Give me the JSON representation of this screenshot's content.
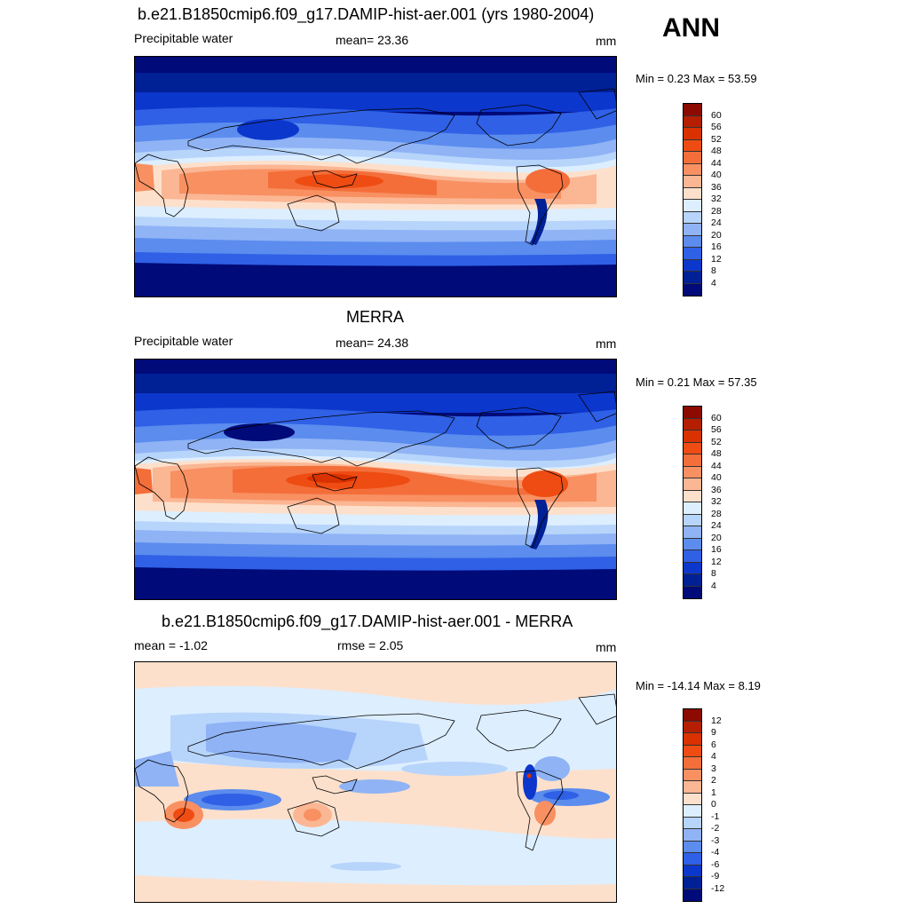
{
  "season": "ANN",
  "panels": [
    {
      "title": "b.e21.B1850cmip6.f09_g17.DAMIP-hist-aer.001 (yrs 1980-2004)",
      "left": "Precipitable water",
      "center": "mean=  23.36",
      "units": "mm",
      "minmax": "Min =   0.23 Max =  53.59",
      "type": "abs"
    },
    {
      "title": "MERRA",
      "left": "Precipitable water",
      "center": "mean=  24.38",
      "units": "mm",
      "minmax": "Min =   0.21 Max =  57.35",
      "type": "abs"
    },
    {
      "title": "b.e21.B1850cmip6.f09_g17.DAMIP-hist-aer.001 - MERRA",
      "left": "mean =  -1.02",
      "center": "rmse =   2.05",
      "units": "mm",
      "minmax": "Min = -14.14 Max =   8.19",
      "type": "diff"
    }
  ],
  "colorbars": {
    "abs": {
      "labels": [
        "60",
        "56",
        "52",
        "48",
        "44",
        "40",
        "36",
        "32",
        "28",
        "24",
        "20",
        "16",
        "12",
        "8",
        "4"
      ],
      "colors": [
        "#8c0a00",
        "#b51e00",
        "#d93100",
        "#ee4c12",
        "#f46e3a",
        "#f89062",
        "#fbb693",
        "#fde0cb",
        "#ddeeff",
        "#b7d4fb",
        "#8fb3f5",
        "#5b8cee",
        "#2f60e6",
        "#0c37cc",
        "#002096",
        "#000a78"
      ]
    },
    "diff": {
      "labels": [
        "12",
        "9",
        "6",
        "4",
        "3",
        "2",
        "1",
        "0",
        "-1",
        "-2",
        "-3",
        "-4",
        "-6",
        "-9",
        "-12"
      ],
      "colors": [
        "#8c0a00",
        "#b51e00",
        "#d93100",
        "#ee4c12",
        "#f46e3a",
        "#f89062",
        "#fbb693",
        "#fde0cb",
        "#ddeeff",
        "#b7d4fb",
        "#8fb3f5",
        "#5b8cee",
        "#2f60e6",
        "#0c37cc",
        "#002096",
        "#000a78"
      ]
    }
  }
}
